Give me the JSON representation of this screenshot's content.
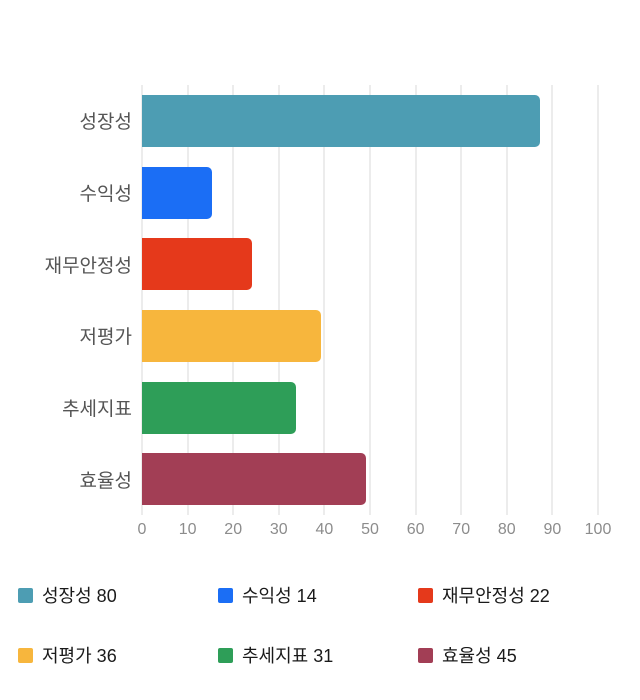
{
  "chart_data": {
    "type": "bar",
    "orientation": "horizontal",
    "title": "",
    "categories": [
      "성장성",
      "수익성",
      "재무안정성",
      "저평가",
      "추세지표",
      "효율성"
    ],
    "values": [
      80,
      14,
      22,
      36,
      31,
      45
    ],
    "bar_colors": [
      "#4d9db3",
      "#1b6ef5",
      "#e5391b",
      "#f7b63d",
      "#2e9e58",
      "#a23e55"
    ],
    "xlim": [
      0,
      100
    ],
    "x_ticks": [
      0,
      10,
      20,
      30,
      40,
      50,
      60,
      70,
      80,
      90,
      100
    ],
    "grid": "vertical",
    "legend_position": "bottom",
    "legend": [
      {
        "label": "성장성 80",
        "color": "#4d9db3"
      },
      {
        "label": "수익성 14",
        "color": "#1b6ef5"
      },
      {
        "label": "재무안정성 22",
        "color": "#e5391b"
      },
      {
        "label": "저평가 36",
        "color": "#f7b63d"
      },
      {
        "label": "추세지표 31",
        "color": "#2e9e58"
      },
      {
        "label": "효율성 45",
        "color": "#a23e55"
      }
    ]
  },
  "styles": {
    "background": "#ffffff",
    "gridline_color": "#d9d9d9",
    "tick_label_color": "#8c8c8c",
    "category_label_color": "#555555",
    "legend_text_color": "#1a1a1a"
  }
}
